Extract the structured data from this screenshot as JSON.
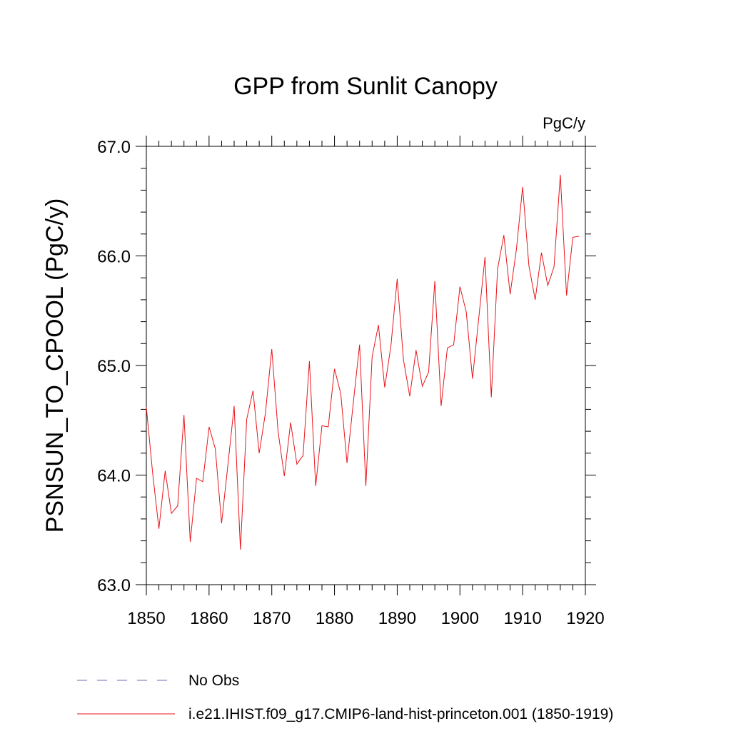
{
  "chart_data": {
    "type": "line",
    "title": "GPP from Sunlit Canopy",
    "units": "PgC/y",
    "xlabel": "",
    "ylabel": "PSNSUN_TO_CPOOL  (PgC/y)",
    "xlim": [
      1850,
      1920
    ],
    "ylim": [
      63.0,
      67.0
    ],
    "x_ticks": [
      "1850",
      "1860",
      "1870",
      "1880",
      "1890",
      "1900",
      "1910",
      "1920"
    ],
    "y_ticks": [
      "63.0",
      "64.0",
      "65.0",
      "66.0",
      "67.0"
    ],
    "legend": [
      {
        "label": "No Obs",
        "style": "dashed",
        "color": "#6e6eb4"
      },
      {
        "label": "i.e21.IHIST.f09_g17.CMIP6-land-hist-princeton.001 (1850-1919)",
        "style": "solid",
        "color": "#e8151b"
      }
    ],
    "series": [
      {
        "name": "i.e21.IHIST.f09_g17.CMIP6-land-hist-princeton.001 (1850-1919)",
        "color": "#e8151b",
        "x": [
          1850,
          1851,
          1852,
          1853,
          1854,
          1855,
          1856,
          1857,
          1858,
          1859,
          1860,
          1861,
          1862,
          1863,
          1864,
          1865,
          1866,
          1867,
          1868,
          1869,
          1870,
          1871,
          1872,
          1873,
          1874,
          1875,
          1876,
          1877,
          1878,
          1879,
          1880,
          1881,
          1882,
          1883,
          1884,
          1885,
          1886,
          1887,
          1888,
          1889,
          1890,
          1891,
          1892,
          1893,
          1894,
          1895,
          1896,
          1897,
          1898,
          1899,
          1900,
          1901,
          1902,
          1903,
          1904,
          1905,
          1906,
          1907,
          1908,
          1909,
          1910,
          1911,
          1912,
          1913,
          1914,
          1915,
          1916,
          1917,
          1918,
          1919
        ],
        "values": [
          64.62,
          64.02,
          63.51,
          64.04,
          63.65,
          63.72,
          64.55,
          63.39,
          63.97,
          63.94,
          64.44,
          64.24,
          63.56,
          64.09,
          64.63,
          63.32,
          64.51,
          64.77,
          64.2,
          64.57,
          65.15,
          64.4,
          63.99,
          64.48,
          64.1,
          64.18,
          65.04,
          63.9,
          64.45,
          64.44,
          64.97,
          64.74,
          64.11,
          64.66,
          65.19,
          63.9,
          65.08,
          65.37,
          64.8,
          65.18,
          65.79,
          65.05,
          64.72,
          65.14,
          64.81,
          64.94,
          65.77,
          64.63,
          65.16,
          65.19,
          65.72,
          65.49,
          64.88,
          65.43,
          65.99,
          64.71,
          65.88,
          66.19,
          65.65,
          66.06,
          66.63,
          65.91,
          65.6,
          66.03,
          65.73,
          65.9,
          66.74,
          65.64,
          66.17,
          66.18
        ]
      }
    ]
  }
}
